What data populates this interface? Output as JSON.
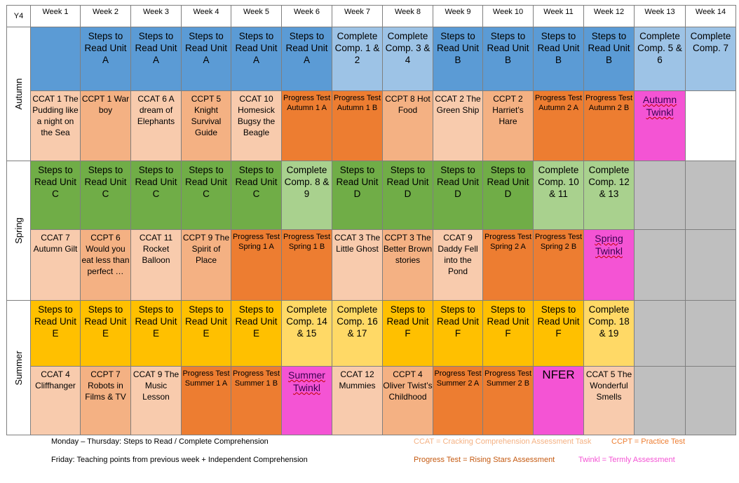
{
  "corner": "Y4",
  "weeks": [
    "Week 1",
    "Week 2",
    "Week 3",
    "Week 4",
    "Week 5",
    "Week 6",
    "Week 7",
    "Week 8",
    "Week 9",
    "Week 10",
    "Week 11",
    "Week 12",
    "Week 13",
    "Week 14"
  ],
  "terms": {
    "autumn": "Autumn",
    "spring": "Spring",
    "summer": "Summer"
  },
  "autumn_reading": [
    "",
    "Steps to Read Unit A",
    "Steps to Read Unit A",
    "Steps to Read Unit A",
    "Steps to Read Unit A",
    "Steps to Read Unit A",
    "Complete Comp. 1 & 2",
    "Complete Comp. 3 & 4",
    "Steps to Read Unit B",
    "Steps to Read Unit B",
    "Steps to Read Unit B",
    "Steps to Read Unit B",
    "Complete Comp. 5 & 6",
    "Complete Comp. 7"
  ],
  "autumn_tasks": [
    "CCAT 1 The Pudding like a night on the Sea",
    "CCPT 1 War boy",
    "CCAT 6 A dream of Elephants",
    "CCPT 5 Knight Survival Guide",
    "CCAT 10 Homesick Bugsy the Beagle",
    "Progress Test Autumn 1 A",
    "Progress Test Autumn 1 B",
    "CCPT 8 Hot Food",
    "CCAT 2 The Green Ship",
    "CCPT 2 Harriet’s Hare",
    "Progress Test Autumn 2 A",
    "Progress Test Autumn 2 B",
    "Autumn Twinkl",
    ""
  ],
  "spring_reading": [
    "Steps to Read Unit C",
    "Steps to Read Unit C",
    "Steps to Read Unit C",
    "Steps to Read Unit C",
    "Steps to Read Unit C",
    "Complete Comp. 8 & 9",
    "Steps to Read Unit D",
    "Steps to Read Unit D",
    "Steps to Read Unit D",
    "Steps to Read Unit D",
    "Complete Comp. 10 & 11",
    "Complete Comp. 12 & 13",
    "",
    ""
  ],
  "spring_tasks": [
    "CCAT 7 Autumn Gilt",
    "CCPT 6 Would you eat less than perfect …",
    "CCAT 11 Rocket Balloon",
    "CCPT  9 The Spirit of Place",
    "Progress Test Spring 1 A",
    "Progress Test Spring 1 B",
    "CCAT 3 The Little Ghost",
    "CCPT 3 The Better Brown stories",
    "CCAT 9 Daddy Fell into the Pond",
    "Progress Test Spring 2 A",
    "Progress Test Spring 2 B",
    "Spring Twinkl",
    "",
    ""
  ],
  "summer_reading": [
    "Steps to Read Unit E",
    "Steps to Read Unit E",
    "Steps to Read Unit E",
    "Steps to Read Unit E",
    "Steps to Read Unit E",
    "Complete Comp. 14 & 15",
    "Complete Comp. 16 & 17",
    "Steps to Read Unit F",
    "Steps to Read Unit F",
    "Steps to Read Unit F",
    "Steps to Read Unit F",
    "Complete Comp. 18 & 19",
    "",
    ""
  ],
  "summer_tasks": [
    "CCAT 4 Cliffhanger",
    "CCPT 7 Robots in Films & TV",
    "CCAT 9 The Music Lesson",
    "Progress Test Summer 1 A",
    "Progress Test Summer 1 B",
    "Summer Twinkl",
    "CCAT 12 Mummies",
    "CCPT 4 Oliver Twist’s Childhood",
    "Progress Test Summer 2 A",
    "Progress Test Summer 2 B",
    "NFER",
    "CCAT 5 The Wonderful Smells",
    "",
    ""
  ],
  "notes": {
    "line1": "Monday – Thursday: Steps to Read / Complete Comprehension",
    "line2": "Friday: Teaching points from previous week + Independent Comprehension"
  },
  "legend": {
    "ccat": "CCAT = Cracking Comprehension Assessment Task",
    "ccpt": "CCPT = Practice Test",
    "progress": "Progress Test = Rising Stars Assessment",
    "twinkl": "Twinkl = Termly Assessment"
  },
  "colors": {
    "steps_blue": "#5b9bd5",
    "comp_lightblue": "#9dc3e6",
    "ccat_peach": "#f8cbad",
    "ccpt_peach": "#f4b183",
    "progress_orange": "#ed7d31",
    "twinkl_magenta": "#f454d4",
    "steps_green": "#70ad47",
    "comp_lightgreen": "#a9d18e",
    "steps_yellow": "#ffc000",
    "comp_lightyellow": "#ffd966",
    "empty_grey": "#bfbfbf"
  }
}
